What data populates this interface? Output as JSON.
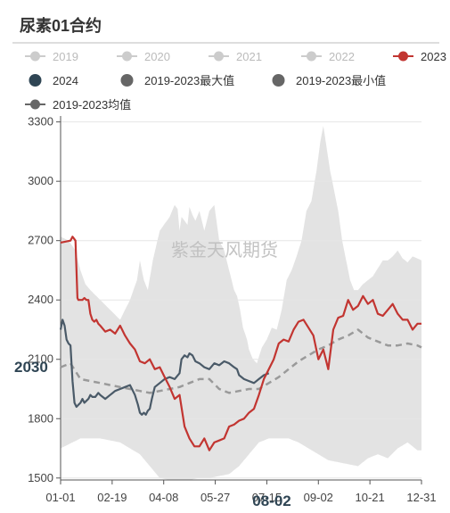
{
  "header": {
    "title": "尿素01合约"
  },
  "watermark": "紫金天风期货",
  "legend": [
    {
      "name": "2019",
      "color": "#cccccc",
      "active": false,
      "marker": "line-circle"
    },
    {
      "name": "2020",
      "color": "#cccccc",
      "active": false,
      "marker": "line-circle"
    },
    {
      "name": "2021",
      "color": "#cccccc",
      "active": false,
      "marker": "line-circle"
    },
    {
      "name": "2022",
      "color": "#cccccc",
      "active": false,
      "marker": "line-circle"
    },
    {
      "name": "2023",
      "color": "#c23531",
      "active": true,
      "marker": "line-circle"
    },
    {
      "name": "2024",
      "color": "#2f4554",
      "active": true,
      "marker": "circle"
    },
    {
      "name": "2019-2023最大值",
      "color": "#666666",
      "active": true,
      "marker": "circle"
    },
    {
      "name": "2019-2023最小值",
      "color": "#666666",
      "active": true,
      "marker": "circle"
    },
    {
      "name": "2019-2023均值",
      "color": "#666666",
      "active": true,
      "marker": "line-circle"
    }
  ],
  "axis_pointer": {
    "y_label": "2030",
    "x_label": "08-02"
  },
  "chart_data": {
    "type": "line",
    "x_tick_labels": [
      "01-01",
      "02-19",
      "04-08",
      "05-27",
      "07-15",
      "09-02",
      "10-21",
      "12-31"
    ],
    "yticks": [
      1500,
      1800,
      2100,
      2400,
      2700,
      3000,
      3300
    ],
    "ylim": [
      1490,
      3330
    ],
    "xlim": [
      0,
      364
    ],
    "grid": true,
    "colors": {
      "band": "#e3e3e3",
      "y2023": "#c23531",
      "y2024": "#4a5a68",
      "mean": "#9a9a9a",
      "grid": "#e6e6e6",
      "axis": "#555555"
    },
    "series": [
      {
        "name": "2019-2023最大值",
        "x": [
          0,
          8,
          15,
          20,
          25,
          30,
          40,
          50,
          60,
          70,
          77,
          80,
          84,
          88,
          93,
          100,
          110,
          115,
          118,
          120,
          122,
          125,
          128,
          130,
          133,
          136,
          140,
          145,
          150,
          155,
          160,
          165,
          170,
          175,
          178,
          181,
          184,
          188,
          190,
          194,
          198,
          203,
          208,
          213,
          218,
          223,
          228,
          233,
          238,
          243,
          248,
          253,
          258,
          262,
          265,
          268,
          272,
          276,
          280,
          284,
          288,
          292,
          296,
          300,
          305,
          310,
          315,
          320,
          325,
          330,
          335,
          340,
          345,
          350,
          355,
          360,
          364
        ],
        "y": [
          2720,
          2700,
          2650,
          2550,
          2480,
          2450,
          2400,
          2350,
          2300,
          2400,
          2500,
          2600,
          2500,
          2450,
          2600,
          2750,
          2820,
          2880,
          2860,
          2750,
          2820,
          2800,
          2780,
          2870,
          2830,
          2800,
          2850,
          2750,
          2850,
          2880,
          2700,
          2650,
          2550,
          2450,
          2420,
          2350,
          2260,
          2200,
          2150,
          2100,
          2080,
          2160,
          2200,
          2260,
          2250,
          2350,
          2500,
          2550,
          2620,
          2700,
          2850,
          2900,
          3050,
          3200,
          3280,
          3180,
          3050,
          2950,
          2850,
          2700,
          2600,
          2500,
          2450,
          2450,
          2480,
          2500,
          2520,
          2560,
          2600,
          2600,
          2620,
          2650,
          2610,
          2590,
          2620,
          2610,
          2600
        ]
      },
      {
        "name": "2019-2023最小值",
        "x": [
          0,
          20,
          40,
          60,
          80,
          90,
          100,
          110,
          120,
          130,
          140,
          150,
          160,
          170,
          180,
          190,
          200,
          210,
          220,
          230,
          240,
          250,
          260,
          270,
          280,
          290,
          300,
          310,
          320,
          330,
          340,
          350,
          360,
          364
        ],
        "y": [
          1650,
          1700,
          1700,
          1680,
          1620,
          1560,
          1500,
          1490,
          1490,
          1490,
          1500,
          1500,
          1510,
          1520,
          1560,
          1620,
          1680,
          1700,
          1700,
          1700,
          1680,
          1650,
          1620,
          1590,
          1580,
          1570,
          1560,
          1600,
          1620,
          1600,
          1650,
          1680,
          1640,
          1640
        ]
      },
      {
        "name": "2023",
        "x": [
          0,
          10,
          12,
          15,
          17,
          18,
          20,
          22,
          24,
          26,
          28,
          30,
          32,
          34,
          36,
          38,
          40,
          45,
          50,
          55,
          60,
          65,
          70,
          75,
          80,
          85,
          90,
          95,
          100,
          105,
          110,
          115,
          120,
          125,
          130,
          135,
          140,
          145,
          150,
          155,
          160,
          165,
          170,
          175,
          180,
          185,
          190,
          195,
          200,
          205,
          210,
          215,
          220,
          225,
          230,
          235,
          240,
          245,
          250,
          255,
          260,
          265,
          270,
          275,
          280,
          285,
          290,
          295,
          300,
          305,
          310,
          315,
          320,
          325,
          330,
          335,
          340,
          345,
          350,
          355,
          360,
          364
        ],
        "y": [
          2690,
          2700,
          2720,
          2700,
          2410,
          2400,
          2400,
          2400,
          2410,
          2400,
          2400,
          2330,
          2300,
          2290,
          2300,
          2280,
          2270,
          2240,
          2250,
          2230,
          2270,
          2220,
          2180,
          2150,
          2090,
          2080,
          2100,
          2050,
          2060,
          2010,
          1960,
          1900,
          1920,
          1760,
          1700,
          1660,
          1660,
          1700,
          1640,
          1680,
          1690,
          1700,
          1760,
          1770,
          1790,
          1800,
          1830,
          1850,
          1920,
          2000,
          2050,
          2100,
          2180,
          2200,
          2190,
          2250,
          2290,
          2300,
          2260,
          2220,
          2100,
          2150,
          2050,
          2250,
          2310,
          2320,
          2400,
          2350,
          2370,
          2420,
          2380,
          2400,
          2330,
          2320,
          2350,
          2380,
          2330,
          2300,
          2300,
          2250,
          2280,
          2280
        ]
      },
      {
        "name": "2024",
        "x": [
          0,
          2,
          4,
          6,
          8,
          10,
          12,
          14,
          15,
          16,
          18,
          20,
          22,
          24,
          26,
          28,
          30,
          32,
          35,
          38,
          40,
          45,
          50,
          55,
          60,
          65,
          70,
          72,
          75,
          78,
          80,
          82,
          84,
          86,
          88,
          90,
          92,
          95,
          100,
          105,
          110,
          115,
          120,
          122,
          125,
          128,
          130,
          133,
          136,
          140,
          145,
          150,
          155,
          160,
          165,
          170,
          175,
          178,
          180,
          185,
          190,
          195,
          200,
          205,
          210
        ],
        "y": [
          2250,
          2300,
          2270,
          2200,
          2180,
          2170,
          1990,
          1880,
          1870,
          1860,
          1870,
          1880,
          1900,
          1880,
          1890,
          1900,
          1920,
          1910,
          1910,
          1930,
          1920,
          1900,
          1920,
          1940,
          1950,
          1960,
          1970,
          1950,
          1920,
          1870,
          1830,
          1820,
          1830,
          1820,
          1840,
          1850,
          1900,
          1960,
          1980,
          2000,
          2010,
          2000,
          2030,
          2100,
          2120,
          2110,
          2130,
          2120,
          2090,
          2080,
          2060,
          2050,
          2080,
          2070,
          2090,
          2080,
          2060,
          2050,
          2020,
          2000,
          1990,
          1980,
          2000,
          2020,
          2030
        ]
      },
      {
        "name": "2019-2023均值",
        "x": [
          0,
          10,
          20,
          30,
          40,
          50,
          60,
          70,
          80,
          90,
          100,
          110,
          120,
          130,
          140,
          150,
          160,
          170,
          180,
          190,
          200,
          210,
          220,
          230,
          240,
          250,
          260,
          270,
          280,
          290,
          300,
          310,
          320,
          330,
          340,
          350,
          360,
          364
        ],
        "y": [
          2060,
          2080,
          2000,
          1990,
          1980,
          1970,
          1960,
          1950,
          1940,
          1930,
          1940,
          1950,
          1960,
          1980,
          2000,
          2000,
          1950,
          1930,
          1940,
          1950,
          1950,
          1980,
          2010,
          2050,
          2090,
          2120,
          2150,
          2170,
          2200,
          2220,
          2250,
          2210,
          2190,
          2170,
          2170,
          2180,
          2170,
          2160
        ]
      }
    ]
  }
}
